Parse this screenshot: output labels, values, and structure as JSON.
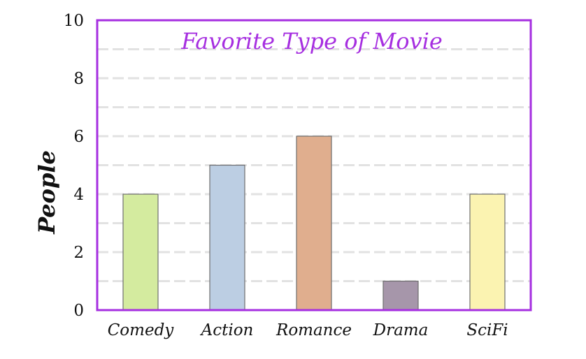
{
  "chart_data": {
    "type": "bar",
    "title": "Favorite Type of Movie",
    "xlabel": "",
    "ylabel": "People",
    "categories": [
      "Comedy",
      "Action",
      "Romance",
      "Drama",
      "SciFi"
    ],
    "values": [
      4,
      5,
      6,
      1,
      4
    ],
    "ylim": [
      0,
      10
    ],
    "yticks": [
      "0",
      "2",
      "4",
      "6",
      "8",
      "10"
    ],
    "grid": true,
    "legend": "none",
    "bar_colors": [
      "#d4eb9f",
      "#bccee3",
      "#e0ae8e",
      "#a696aa",
      "#fbf3b1"
    ],
    "frame_color": "#a62fe0",
    "title_color": "#a62fe0",
    "grid_color": "#e2e2e2"
  }
}
